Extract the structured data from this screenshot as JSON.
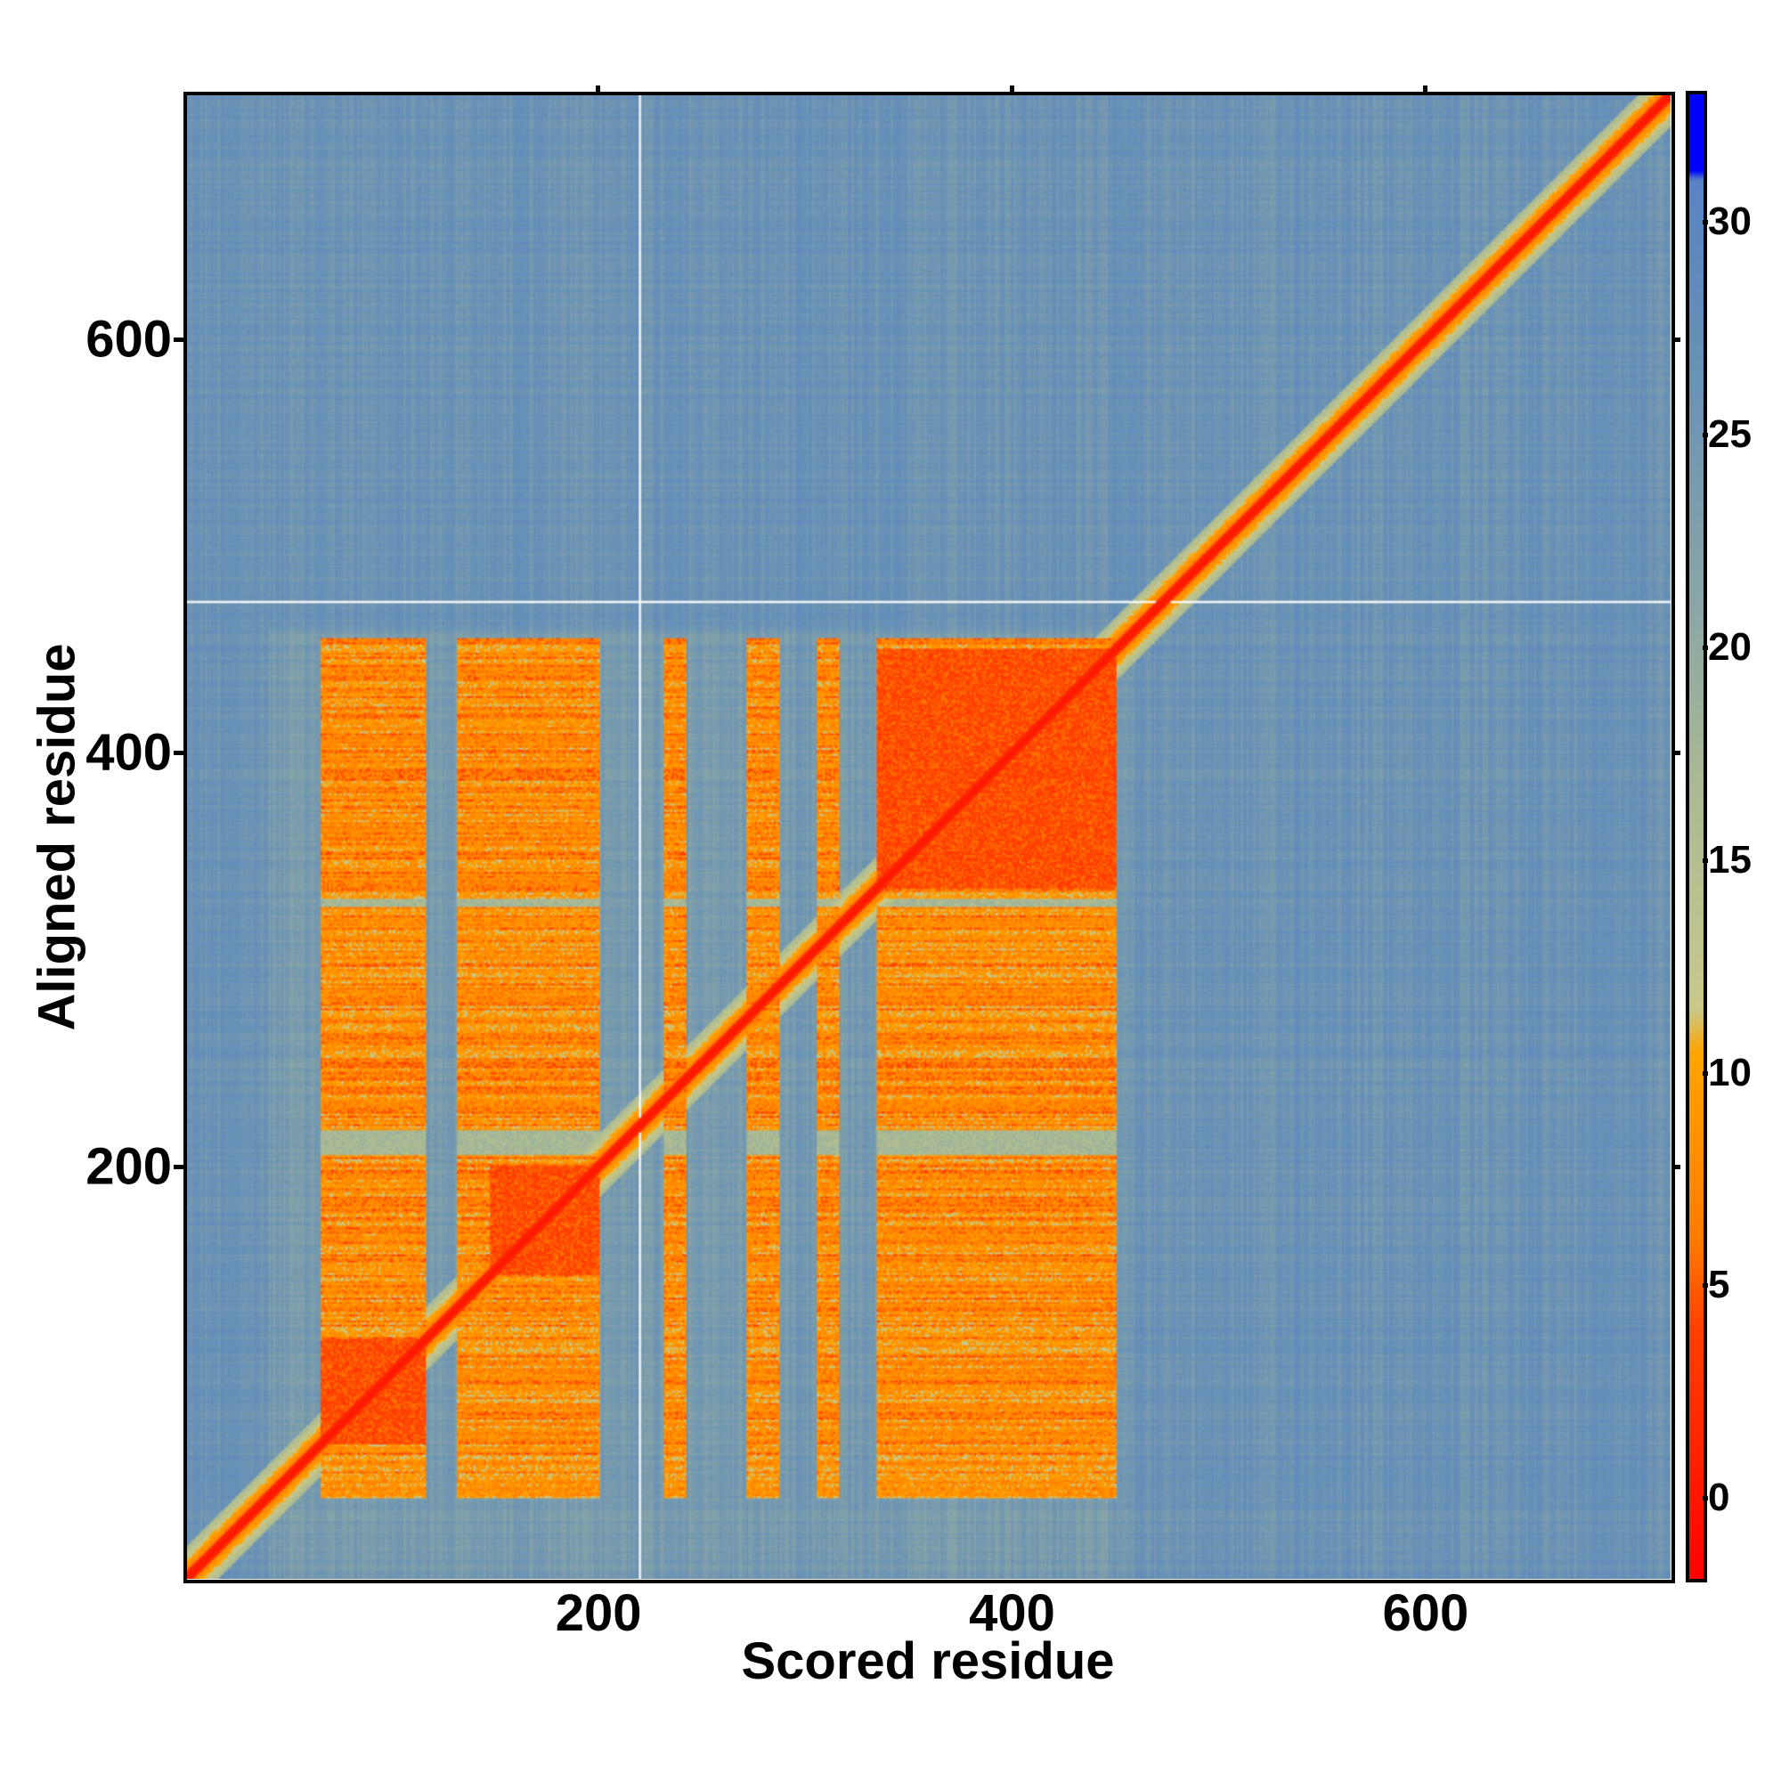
{
  "chart_data": {
    "type": "heatmap",
    "title": "",
    "xlabel": "Scored residue",
    "ylabel": "Aligned residue",
    "xlim": [
      1,
      718
    ],
    "ylim": [
      1,
      718
    ],
    "xticks": [
      200,
      400,
      600
    ],
    "yticks": [
      200,
      400,
      600
    ],
    "colorbar": {
      "ticks": [
        0,
        5,
        10,
        15,
        20,
        25,
        30
      ],
      "range": [
        -1.9,
        33
      ],
      "stops": [
        {
          "value": -1.9,
          "color": "#ff0000"
        },
        {
          "value": 1,
          "color": "#ff2200"
        },
        {
          "value": 4,
          "color": "#ff4000"
        },
        {
          "value": 6,
          "color": "#ff7a00"
        },
        {
          "value": 10.5,
          "color": "#ffa500"
        },
        {
          "value": 11.5,
          "color": "#c9c98a"
        },
        {
          "value": 17,
          "color": "#a9b994"
        },
        {
          "value": 21,
          "color": "#8aa6a6"
        },
        {
          "value": 26,
          "color": "#6b93b4"
        },
        {
          "value": 31,
          "color": "#5784c4"
        },
        {
          "value": 31.2,
          "color": "#0000ff"
        },
        {
          "value": 33,
          "color": "#0000ff"
        }
      ]
    },
    "background_value": 26,
    "diagonal_value": 0,
    "column_segments": [
      [
        66,
        116
      ],
      [
        132,
        200
      ],
      [
        232,
        242
      ],
      [
        272,
        287
      ],
      [
        306,
        316
      ],
      [
        335,
        450
      ]
    ],
    "row_bands": [
      [
        40,
        205
      ],
      [
        218,
        325
      ],
      [
        330,
        455
      ]
    ],
    "domains": [
      [
        66,
        116
      ],
      [
        148,
        200
      ],
      [
        335,
        450
      ]
    ],
    "off_domain_value": 8,
    "gap_lines": {
      "x": 220,
      "y": 473
    }
  }
}
